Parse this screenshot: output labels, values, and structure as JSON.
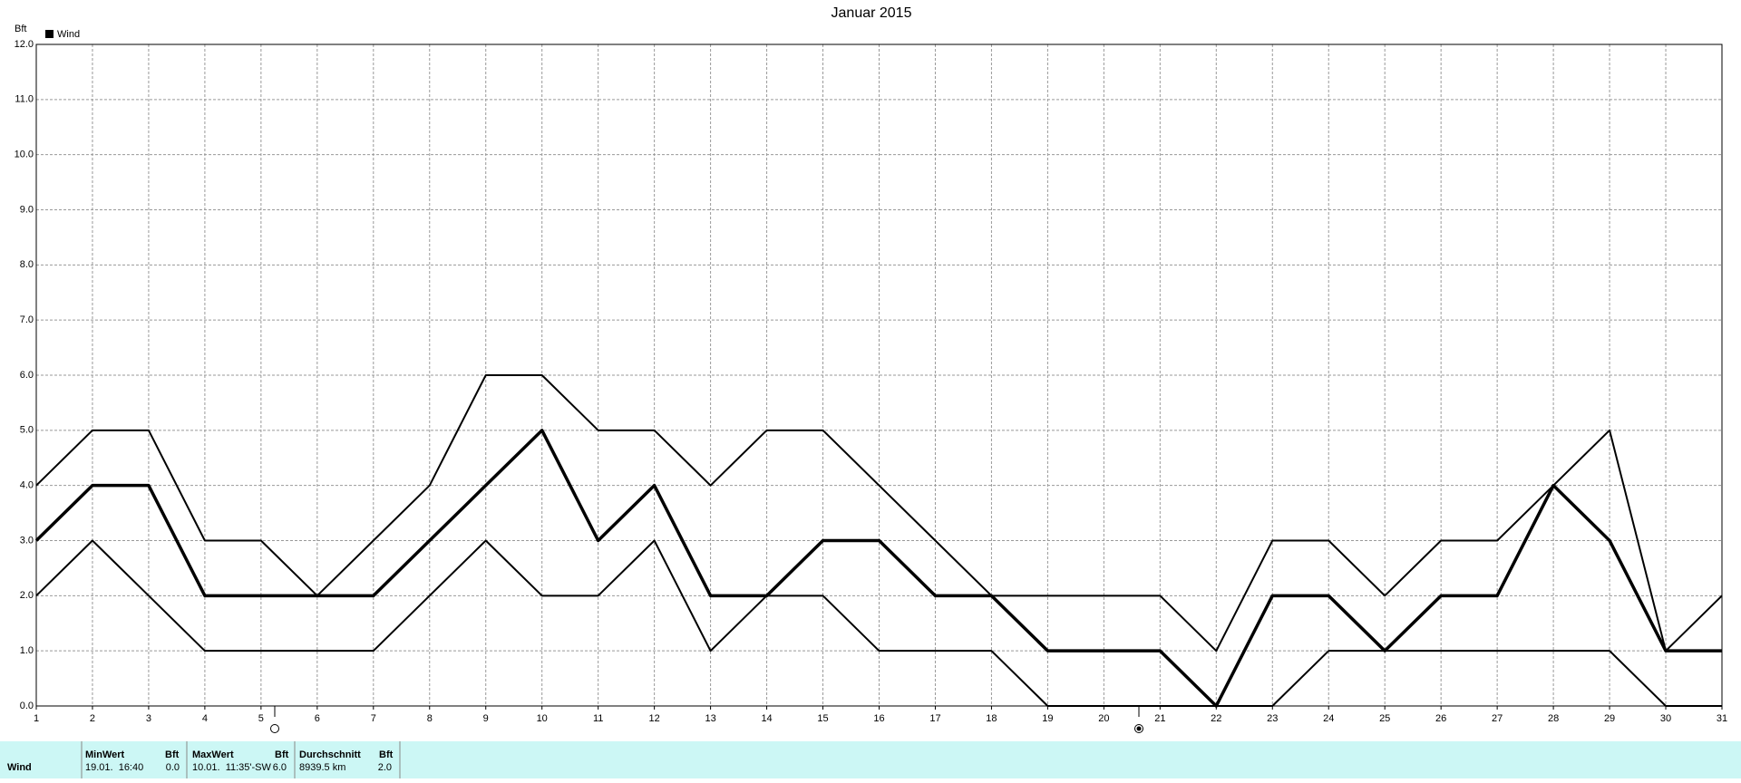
{
  "chart_data": {
    "type": "line",
    "title": "Januar 2015",
    "y_label": "Bft",
    "x": [
      1,
      2,
      3,
      4,
      5,
      6,
      7,
      8,
      9,
      10,
      11,
      12,
      13,
      14,
      15,
      16,
      17,
      18,
      19,
      20,
      21,
      22,
      23,
      24,
      25,
      26,
      27,
      28,
      29,
      30,
      31
    ],
    "series": [
      {
        "values": [
          4,
          5,
          5,
          3,
          3,
          2,
          3,
          4,
          6,
          6,
          5,
          5,
          4,
          5,
          5,
          4,
          3,
          2,
          2,
          2,
          2,
          1,
          3,
          3,
          2,
          3,
          3,
          4,
          5,
          1,
          2
        ],
        "color": "#000000",
        "width": 2
      },
      {
        "name": "Wind",
        "values": [
          3,
          4,
          4,
          2,
          2,
          2,
          2,
          3,
          4,
          5,
          3,
          4,
          2,
          2,
          3,
          3,
          2,
          2,
          1,
          1,
          1,
          0,
          2,
          2,
          1,
          2,
          2,
          4,
          3,
          1,
          1
        ],
        "color": "#000000",
        "width": 3.5
      },
      {
        "values": [
          2,
          3,
          2,
          1,
          1,
          1,
          1,
          2,
          3,
          2,
          2,
          3,
          1,
          2,
          2,
          1,
          1,
          1,
          0,
          0,
          0,
          0,
          0,
          1,
          1,
          1,
          1,
          1,
          1,
          0,
          0
        ],
        "color": "#000000",
        "width": 2
      }
    ],
    "xlim": [
      1,
      31
    ],
    "xticks": [
      1,
      2,
      3,
      4,
      5,
      6,
      7,
      8,
      9,
      10,
      11,
      12,
      13,
      14,
      15,
      16,
      17,
      18,
      19,
      20,
      21,
      22,
      23,
      24,
      25,
      26,
      27,
      28,
      29,
      30,
      31
    ],
    "ylim": [
      0,
      12
    ],
    "yticks": [
      {
        "value": 0,
        "label": "0.0"
      },
      {
        "value": 1,
        "label": "1.0"
      },
      {
        "value": 2,
        "label": "2.0"
      },
      {
        "value": 3,
        "label": "3.0"
      },
      {
        "value": 4,
        "label": "4.0"
      },
      {
        "value": 5,
        "label": "5.0"
      },
      {
        "value": 6,
        "label": "6.0"
      },
      {
        "value": 7,
        "label": "7.0"
      },
      {
        "value": 8,
        "label": "8.0"
      },
      {
        "value": 9,
        "label": "9.0"
      },
      {
        "value": 10,
        "label": "10.0"
      },
      {
        "value": 11,
        "label": "11.0"
      },
      {
        "value": 12,
        "label": "12.0"
      }
    ],
    "grid": true,
    "legend": "top-left"
  },
  "table": {
    "row_label": "Wind",
    "columns": [
      {
        "header": "MinWert",
        "unit": "Bft",
        "text": "19.01.  16:40",
        "value": "0.0"
      },
      {
        "header": "MaxWert",
        "unit": "Bft",
        "text": "10.01.  11:35'-SW",
        "value": "6.0"
      },
      {
        "header": "Durchschnitt",
        "unit": "Bft",
        "text": "8939.5 km",
        "value": "2.0"
      }
    ]
  }
}
